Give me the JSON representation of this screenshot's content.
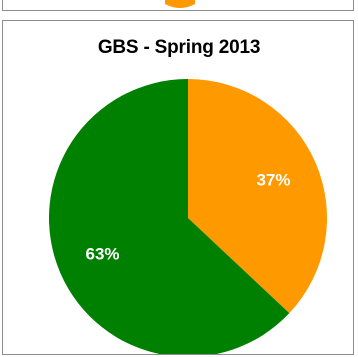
{
  "chart_data": {
    "type": "pie",
    "title": "GBS - Spring 2013",
    "slices": [
      {
        "label": "37%",
        "value": 37,
        "color": "#ff9900"
      },
      {
        "label": "63%",
        "value": 63,
        "color": "#008000"
      }
    ],
    "legend": "none"
  }
}
